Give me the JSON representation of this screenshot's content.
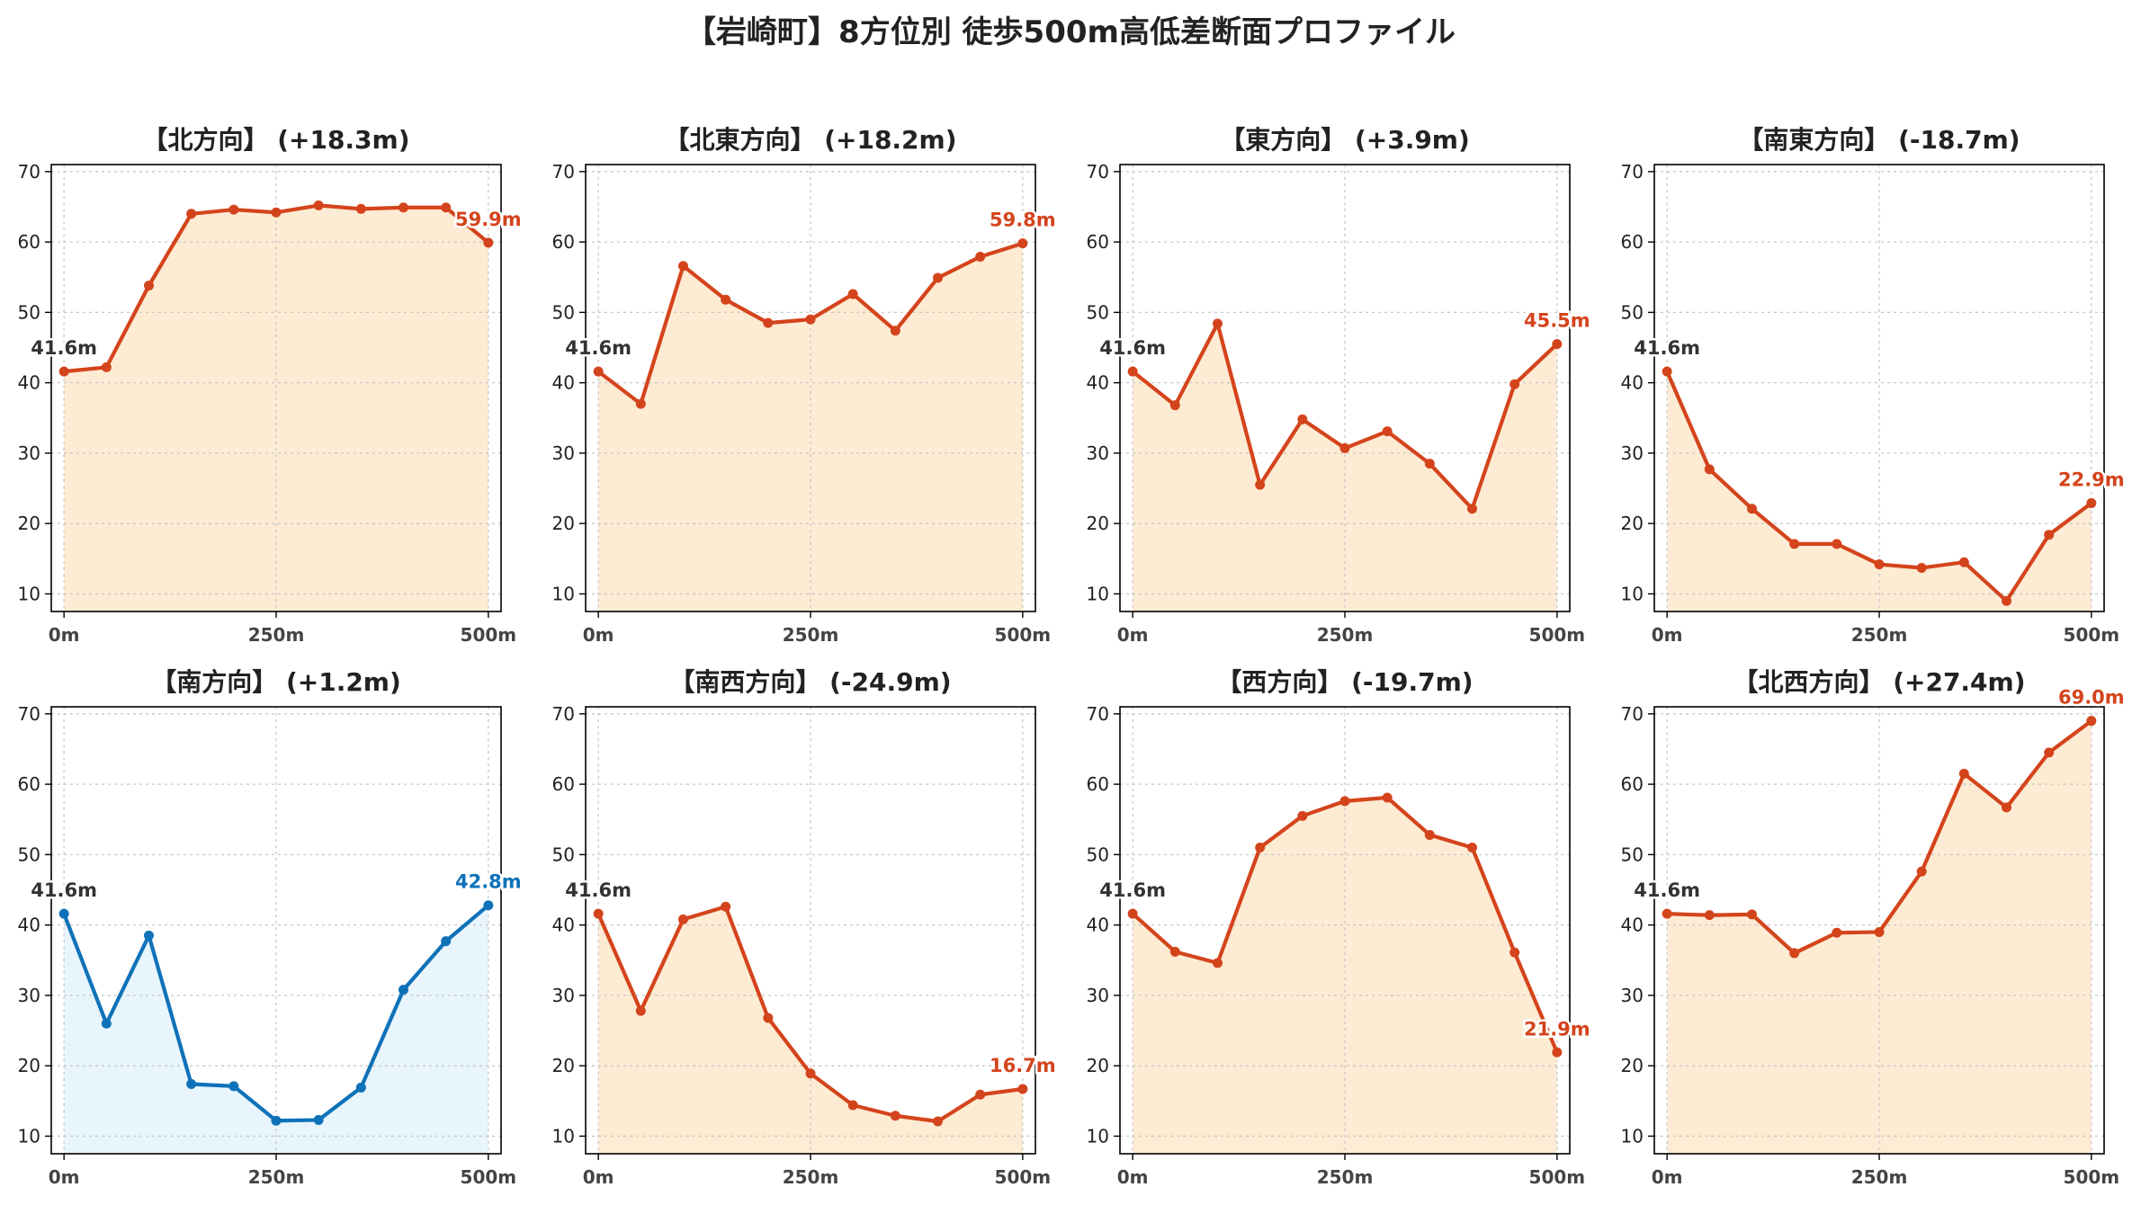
{
  "suptitle": "【岩崎町】8方位別 徒歩500m高低差断面プロファイル",
  "colors": {
    "red_line": "#d4441c",
    "red_fill": "#fdebd3",
    "blue_line": "#0f72b8",
    "blue_fill": "#e8f5fc",
    "start_label": "#333333",
    "grid": "#c8c8c8"
  },
  "chart_data": [
    {
      "type": "area",
      "title": "【北方向】 (+18.3m)",
      "theme": "red",
      "x": [
        0,
        50,
        100,
        150,
        200,
        250,
        300,
        350,
        400,
        450,
        500
      ],
      "y": [
        41.6,
        42.2,
        53.8,
        64.0,
        64.6,
        64.2,
        65.2,
        64.7,
        64.9,
        64.9,
        59.9
      ],
      "start_label": "41.6m",
      "end_label": "59.9m",
      "xticks": [
        "0m",
        "250m",
        "500m"
      ],
      "yticks": [
        "10",
        "20",
        "30",
        "40",
        "50",
        "60",
        "70"
      ],
      "ylim": [
        7.5,
        71
      ],
      "xlim": [
        -15,
        515
      ],
      "grid": true
    },
    {
      "type": "area",
      "title": "【北東方向】 (+18.2m)",
      "theme": "red",
      "x": [
        0,
        50,
        100,
        150,
        200,
        250,
        300,
        350,
        400,
        450,
        500
      ],
      "y": [
        41.6,
        37.0,
        56.6,
        51.8,
        48.5,
        49.0,
        52.6,
        47.4,
        54.9,
        57.9,
        59.8
      ],
      "start_label": "41.6m",
      "end_label": "59.8m",
      "xticks": [
        "0m",
        "250m",
        "500m"
      ],
      "yticks": [
        "10",
        "20",
        "30",
        "40",
        "50",
        "60",
        "70"
      ],
      "ylim": [
        7.5,
        71
      ],
      "xlim": [
        -15,
        515
      ],
      "grid": true
    },
    {
      "type": "area",
      "title": "【東方向】 (+3.9m)",
      "theme": "red",
      "x": [
        0,
        50,
        100,
        150,
        200,
        250,
        300,
        350,
        400,
        450,
        500
      ],
      "y": [
        41.6,
        36.8,
        48.4,
        25.5,
        34.8,
        30.7,
        33.1,
        28.5,
        22.1,
        39.8,
        45.5
      ],
      "start_label": "41.6m",
      "end_label": "45.5m",
      "xticks": [
        "0m",
        "250m",
        "500m"
      ],
      "yticks": [
        "10",
        "20",
        "30",
        "40",
        "50",
        "60",
        "70"
      ],
      "ylim": [
        7.5,
        71
      ],
      "xlim": [
        -15,
        515
      ],
      "grid": true
    },
    {
      "type": "area",
      "title": "【南東方向】 (-18.7m)",
      "theme": "red",
      "x": [
        0,
        50,
        100,
        150,
        200,
        250,
        300,
        350,
        400,
        450,
        500
      ],
      "y": [
        41.6,
        27.7,
        22.1,
        17.1,
        17.1,
        14.2,
        13.7,
        14.5,
        9.0,
        18.4,
        22.9
      ],
      "start_label": "41.6m",
      "end_label": "22.9m",
      "xticks": [
        "0m",
        "250m",
        "500m"
      ],
      "yticks": [
        "10",
        "20",
        "30",
        "40",
        "50",
        "60",
        "70"
      ],
      "ylim": [
        7.5,
        71
      ],
      "xlim": [
        -15,
        515
      ],
      "grid": true
    },
    {
      "type": "area",
      "title": "【南方向】 (+1.2m)",
      "theme": "blue",
      "x": [
        0,
        50,
        100,
        150,
        200,
        250,
        300,
        350,
        400,
        450,
        500
      ],
      "y": [
        41.6,
        26.0,
        38.5,
        17.4,
        17.1,
        12.2,
        12.3,
        16.9,
        30.8,
        37.7,
        42.8
      ],
      "start_label": "41.6m",
      "end_label": "42.8m",
      "xticks": [
        "0m",
        "250m",
        "500m"
      ],
      "yticks": [
        "10",
        "20",
        "30",
        "40",
        "50",
        "60",
        "70"
      ],
      "ylim": [
        7.5,
        71
      ],
      "xlim": [
        -15,
        515
      ],
      "grid": true
    },
    {
      "type": "area",
      "title": "【南西方向】 (-24.9m)",
      "theme": "red",
      "x": [
        0,
        50,
        100,
        150,
        200,
        250,
        300,
        350,
        400,
        450,
        500
      ],
      "y": [
        41.6,
        27.8,
        40.8,
        42.6,
        26.8,
        18.9,
        14.4,
        12.9,
        12.1,
        15.9,
        16.7
      ],
      "start_label": "41.6m",
      "end_label": "16.7m",
      "xticks": [
        "0m",
        "250m",
        "500m"
      ],
      "yticks": [
        "10",
        "20",
        "30",
        "40",
        "50",
        "60",
        "70"
      ],
      "ylim": [
        7.5,
        71
      ],
      "xlim": [
        -15,
        515
      ],
      "grid": true
    },
    {
      "type": "area",
      "title": "【西方向】 (-19.7m)",
      "theme": "red",
      "x": [
        0,
        50,
        100,
        150,
        200,
        250,
        300,
        350,
        400,
        450,
        500
      ],
      "y": [
        41.6,
        36.2,
        34.6,
        51.0,
        55.5,
        57.6,
        58.1,
        52.8,
        51.0,
        36.1,
        21.9
      ],
      "start_label": "41.6m",
      "end_label": "21.9m",
      "xticks": [
        "0m",
        "250m",
        "500m"
      ],
      "yticks": [
        "10",
        "20",
        "30",
        "40",
        "50",
        "60",
        "70"
      ],
      "ylim": [
        7.5,
        71
      ],
      "xlim": [
        -15,
        515
      ],
      "grid": true
    },
    {
      "type": "area",
      "title": "【北西方向】 (+27.4m)",
      "theme": "red",
      "x": [
        0,
        50,
        100,
        150,
        200,
        250,
        300,
        350,
        400,
        450,
        500
      ],
      "y": [
        41.6,
        41.4,
        41.5,
        36.0,
        38.9,
        39.0,
        47.6,
        61.5,
        56.7,
        64.5,
        69.0
      ],
      "start_label": "41.6m",
      "end_label": "69.0m",
      "xticks": [
        "0m",
        "250m",
        "500m"
      ],
      "yticks": [
        "10",
        "20",
        "30",
        "40",
        "50",
        "60",
        "70"
      ],
      "ylim": [
        7.5,
        71
      ],
      "xlim": [
        -15,
        515
      ],
      "grid": true
    }
  ]
}
